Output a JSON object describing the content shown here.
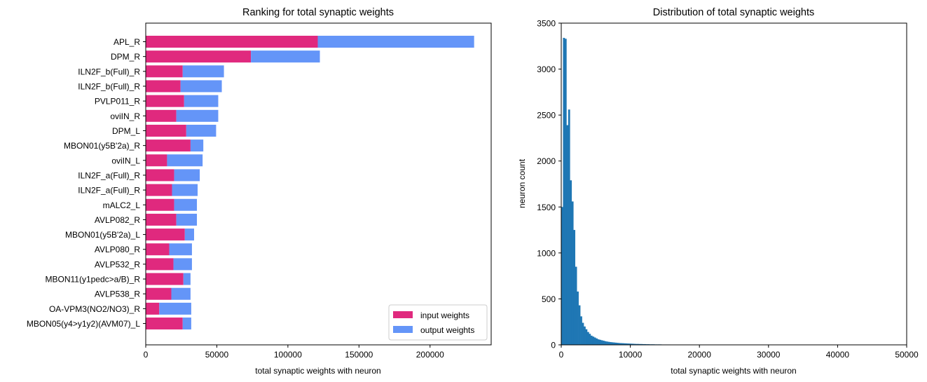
{
  "chart_data": [
    {
      "type": "bar",
      "orientation": "horizontal",
      "stacked": true,
      "title": "Ranking for total synaptic weights",
      "xlabel": "total synaptic weights with neuron",
      "ylabel": "",
      "xlim": [
        0,
        243000
      ],
      "xticks": [
        0,
        50000,
        100000,
        150000,
        200000
      ],
      "xtick_labels": [
        "0",
        "50000",
        "100000",
        "150000",
        "200000"
      ],
      "legend_position": "lower-right",
      "categories": [
        "APL_R",
        "DPM_R",
        "ILN2F_b(Full)_R",
        "ILN2F_b(Full)_R",
        "PVLP011_R",
        "oviIN_R",
        "DPM_L",
        "MBON01(y5B'2a)_R",
        "oviIN_L",
        "ILN2F_a(Full)_R",
        "ILN2F_a(Full)_R",
        "mALC2_L",
        "AVLP082_R",
        "MBON01(y5B'2a)_L",
        "AVLP080_R",
        "AVLP532_R",
        "MBON11(y1pedc>a/B)_R",
        "AVLP538_R",
        "OA-VPM3(NO2/NO3)_R",
        "MBON05(y4>y1y2)(AVM07)_L"
      ],
      "series": [
        {
          "name": "input weights",
          "color": "#e0297e",
          "values": [
            121000,
            74000,
            26000,
            24500,
            27000,
            21500,
            28500,
            31500,
            15000,
            20000,
            18500,
            20000,
            21500,
            27500,
            16500,
            19500,
            26500,
            18000,
            9500,
            26000
          ]
        },
        {
          "name": "output weights",
          "color": "#6495f8",
          "values": [
            110000,
            48500,
            29000,
            29000,
            24000,
            29500,
            21000,
            9000,
            25000,
            18000,
            18000,
            16000,
            14500,
            6500,
            16000,
            13000,
            5000,
            13500,
            22500,
            6000
          ]
        }
      ]
    },
    {
      "type": "histogram",
      "title": "Distribution of total synaptic weights",
      "xlabel": "total synaptic weights with neuron",
      "ylabel": "neuron count",
      "xlim": [
        0,
        50000
      ],
      "ylim": [
        0,
        3500
      ],
      "xticks": [
        0,
        10000,
        20000,
        30000,
        40000,
        50000
      ],
      "xtick_labels": [
        "0",
        "10000",
        "20000",
        "30000",
        "40000",
        "50000"
      ],
      "yticks": [
        0,
        500,
        1000,
        1500,
        2000,
        2500,
        3000,
        3500
      ],
      "ytick_labels": [
        "0",
        "500",
        "1000",
        "1500",
        "2000",
        "2500",
        "3000",
        "3500"
      ],
      "color": "#1f77b4",
      "bin_width": 250,
      "bin_start": 0,
      "counts": [
        1500,
        3340,
        3330,
        2390,
        2560,
        1790,
        1560,
        1250,
        850,
        580,
        430,
        310,
        240,
        200,
        170,
        140,
        120,
        100,
        90,
        80,
        70,
        60,
        55,
        50,
        45,
        40,
        36,
        33,
        30,
        28,
        26,
        24,
        22,
        20,
        19,
        18,
        17,
        16,
        15,
        14,
        13,
        12,
        11,
        10,
        10,
        9,
        9,
        8,
        8,
        7,
        7,
        6,
        6,
        6,
        5,
        5,
        5,
        5,
        4,
        4,
        4,
        4,
        4,
        3,
        3,
        3,
        3,
        3,
        3,
        3,
        2,
        2,
        2,
        2,
        2,
        2,
        2,
        2,
        2,
        2,
        2,
        2,
        2,
        2,
        1,
        1,
        1,
        1,
        1,
        1,
        1,
        1,
        1,
        1,
        1,
        1,
        1,
        1,
        1,
        1,
        1,
        1,
        1,
        1,
        1,
        1,
        1,
        1,
        1,
        1,
        1,
        1,
        1,
        1,
        1,
        1,
        1,
        1,
        1,
        1,
        1,
        1,
        1,
        1,
        1,
        1,
        1,
        1,
        1,
        1
      ]
    }
  ]
}
